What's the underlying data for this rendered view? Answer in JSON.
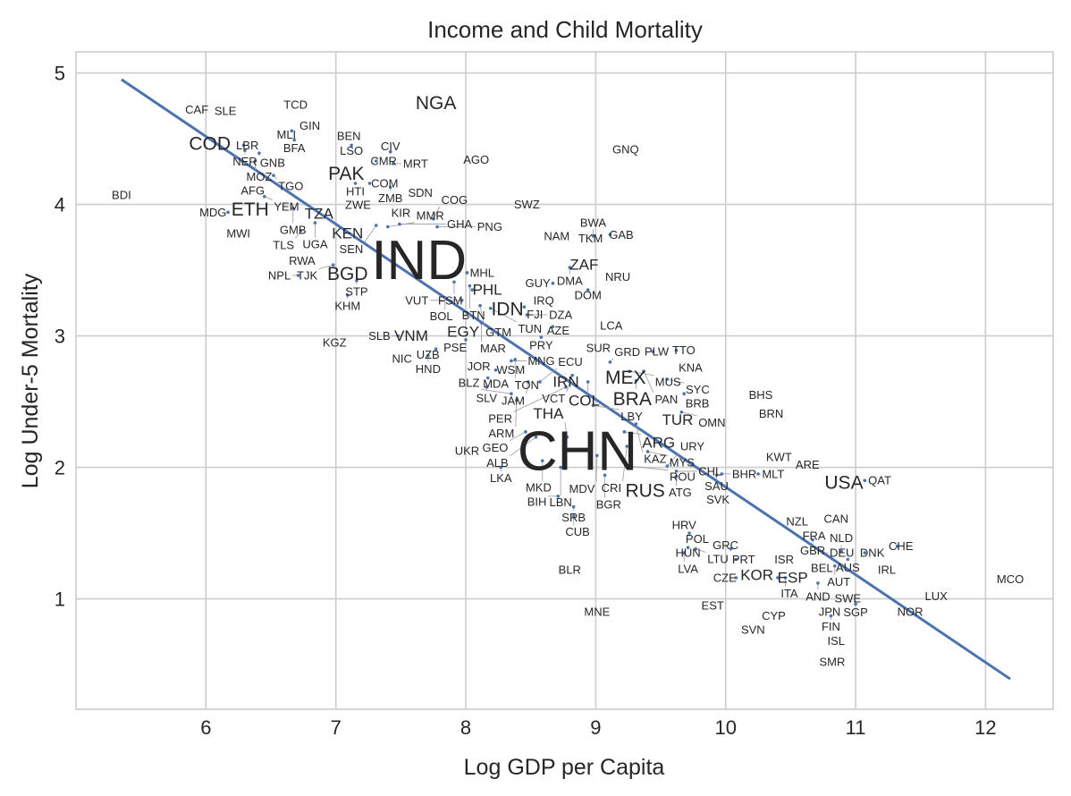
{
  "chart_data": {
    "type": "scatter",
    "title": "Income and Child Mortality",
    "xlabel": "Log GDP per Capita",
    "ylabel": "Log Under-5 Mortality",
    "xlim": [
      5.0,
      12.52
    ],
    "ylim": [
      0.16,
      5.16
    ],
    "xticks": [
      6,
      7,
      8,
      9,
      10,
      11,
      12
    ],
    "yticks": [
      1,
      2,
      3,
      4,
      5
    ],
    "grid": true,
    "marker": "country-code text labels (label size scales with population tier 1-4)",
    "fit_line": {
      "x": [
        5.35,
        12.19
      ],
      "y": [
        4.95,
        0.39
      ],
      "color": "#4c72b0"
    },
    "points": [
      [
        "CAF",
        5.93,
        4.72,
        1
      ],
      [
        "SLE",
        6.15,
        4.71,
        1
      ],
      [
        "TCD",
        6.69,
        4.76,
        1
      ],
      [
        "GIN",
        6.8,
        4.6,
        1
      ],
      [
        "MLI",
        6.66,
        4.56,
        1
      ],
      [
        "BFA",
        6.68,
        4.49,
        1
      ],
      [
        "BEN",
        7.1,
        4.52,
        1
      ],
      [
        "LSO",
        7.12,
        4.45,
        1
      ],
      [
        "NGA",
        7.77,
        4.77,
        3
      ],
      [
        "COD",
        6.03,
        4.46,
        3
      ],
      [
        "LBR",
        6.29,
        4.45,
        1
      ],
      [
        "NER",
        6.3,
        4.41,
        1
      ],
      [
        "GNB",
        6.41,
        4.39,
        1
      ],
      [
        "MOZ",
        6.38,
        4.33,
        1
      ],
      [
        "TGO",
        6.52,
        4.22,
        1
      ],
      [
        "AFG",
        6.34,
        4.12,
        1
      ],
      [
        "YEM",
        6.45,
        4.06,
        1
      ],
      [
        "BDI",
        5.35,
        4.07,
        1
      ],
      [
        "MDG",
        6.17,
        3.94,
        1
      ],
      [
        "ETH",
        6.34,
        3.96,
        3
      ],
      [
        "MWI",
        6.25,
        3.78,
        1
      ],
      [
        "GMB",
        6.67,
        3.97,
        1
      ],
      [
        "TZA",
        6.87,
        3.93,
        2
      ],
      [
        "UGA",
        6.84,
        3.86,
        1
      ],
      [
        "TLS",
        6.73,
        3.8,
        1
      ],
      [
        "KEN",
        7.09,
        3.78,
        2
      ],
      [
        "PAK",
        7.08,
        4.23,
        3
      ],
      [
        "HTI",
        7.15,
        4.16,
        1
      ],
      [
        "COM",
        7.26,
        4.16,
        1
      ],
      [
        "CMR",
        7.31,
        4.33,
        1
      ],
      [
        "CIV",
        7.42,
        4.4,
        1
      ],
      [
        "MRT",
        7.44,
        4.31,
        1
      ],
      [
        "ZMB",
        7.42,
        4.13,
        1
      ],
      [
        "SDN",
        7.65,
        4.09,
        1
      ],
      [
        "AGO",
        8.08,
        4.34,
        1
      ],
      [
        "GNQ",
        9.23,
        4.42,
        1
      ],
      [
        "ZWE",
        7.15,
        4.01,
        1
      ],
      [
        "KIR",
        7.48,
        3.95,
        1
      ],
      [
        "SEN",
        7.31,
        3.84,
        1
      ],
      [
        "MMR",
        7.4,
        3.83,
        1
      ],
      [
        "GHA",
        7.49,
        3.85,
        1
      ],
      [
        "COG",
        7.75,
        3.89,
        1
      ],
      [
        "PNG",
        7.78,
        3.83,
        1
      ],
      [
        "SWZ",
        8.47,
        4.0,
        1
      ],
      [
        "IND",
        7.64,
        3.57,
        4
      ],
      [
        "RWA",
        6.74,
        3.57,
        1
      ],
      [
        "TJK",
        6.98,
        3.54,
        1
      ],
      [
        "NPL",
        6.71,
        3.46,
        1
      ],
      [
        "BGD",
        7.09,
        3.47,
        3
      ],
      [
        "STP",
        7.16,
        3.42,
        1
      ],
      [
        "KHM",
        7.09,
        3.31,
        1
      ],
      [
        "NAM",
        8.7,
        3.76,
        1
      ],
      [
        "TKM",
        8.96,
        3.74,
        1
      ],
      [
        "BWA",
        8.98,
        3.76,
        1
      ],
      [
        "GAB",
        9.11,
        3.77,
        1
      ],
      [
        "DMA",
        8.8,
        3.52,
        1
      ],
      [
        "ZAF",
        8.91,
        3.54,
        2
      ],
      [
        "NRU",
        9.17,
        3.45,
        1
      ],
      [
        "GUY",
        8.67,
        3.4,
        1
      ],
      [
        "DOM",
        8.94,
        3.35,
        1
      ],
      [
        "IRQ",
        8.6,
        3.27,
        1
      ],
      [
        "MHL",
        8.01,
        3.48,
        1
      ],
      [
        "FSM",
        7.91,
        3.41,
        1
      ],
      [
        "BTN",
        8.03,
        3.38,
        1
      ],
      [
        "PHL",
        8.05,
        3.35,
        2
      ],
      [
        "BOL",
        7.84,
        3.29,
        1
      ],
      [
        "VUT",
        7.97,
        3.27,
        1
      ],
      [
        "GTM",
        8.11,
        3.23,
        1
      ],
      [
        "TUN",
        8.19,
        3.21,
        1
      ],
      [
        "IDN",
        8.32,
        3.2,
        3
      ],
      [
        "FJI",
        8.45,
        3.22,
        1
      ],
      [
        "DZA",
        8.47,
        3.16,
        1
      ],
      [
        "MAR",
        8.12,
        3.1,
        1
      ],
      [
        "EGY",
        7.98,
        3.03,
        2
      ],
      [
        "PSE",
        8.0,
        2.97,
        1
      ],
      [
        "AZE",
        8.67,
        3.07,
        1
      ],
      [
        "PRY",
        8.58,
        2.99,
        1
      ],
      [
        "LCA",
        9.12,
        3.08,
        1
      ],
      [
        "SLB",
        7.48,
        3.0,
        1
      ],
      [
        "VNM",
        7.58,
        3.0,
        2
      ],
      [
        "KGZ",
        6.99,
        2.95,
        1
      ],
      [
        "UZB",
        7.77,
        2.9,
        1
      ],
      [
        "NIC",
        7.53,
        2.84,
        1
      ],
      [
        "HND",
        7.71,
        2.85,
        1
      ],
      [
        "SUR",
        9.02,
        2.91,
        1
      ],
      [
        "GRD",
        9.11,
        2.8,
        1
      ],
      [
        "PLW",
        9.44,
        2.88,
        1
      ],
      [
        "TTO",
        9.62,
        2.89,
        1
      ],
      [
        "KNA",
        9.73,
        2.76,
        1
      ],
      [
        "MUS",
        9.26,
        2.73,
        1
      ],
      [
        "MEX",
        9.23,
        2.68,
        3
      ],
      [
        "BRA",
        9.31,
        2.66,
        3
      ],
      [
        "PAN",
        9.37,
        2.73,
        1
      ],
      [
        "SYC",
        9.55,
        2.67,
        1
      ],
      [
        "BRB",
        9.68,
        2.56,
        1
      ],
      [
        "BHS",
        10.27,
        2.55,
        1
      ],
      [
        "BRN",
        10.35,
        2.41,
        1
      ],
      [
        "OMN",
        9.66,
        2.42,
        1
      ],
      [
        "TUR",
        9.63,
        2.36,
        2
      ],
      [
        "JOR",
        8.1,
        2.77,
        1
      ],
      [
        "WSM",
        8.23,
        2.74,
        1
      ],
      [
        "MNG",
        8.35,
        2.81,
        1
      ],
      [
        "TON",
        8.38,
        2.82,
        1
      ],
      [
        "MDA",
        8.17,
        2.68,
        1
      ],
      [
        "SLV",
        8.16,
        2.61,
        1
      ],
      [
        "JAM",
        8.48,
        2.65,
        1
      ],
      [
        "ECU",
        8.57,
        2.65,
        1
      ],
      [
        "VCT",
        8.82,
        2.7,
        1
      ],
      [
        "IRN",
        8.77,
        2.65,
        2
      ],
      [
        "PER",
        8.77,
        2.61,
        1
      ],
      [
        "COL",
        8.94,
        2.65,
        2
      ],
      [
        "BLZ",
        8.35,
        2.56,
        1
      ],
      [
        "ARM",
        8.39,
        2.51,
        1
      ],
      [
        "LBY",
        8.98,
        2.47,
        1
      ],
      [
        "KAZ",
        9.31,
        2.33,
        1
      ],
      [
        "ARG",
        9.22,
        2.27,
        2
      ],
      [
        "GEO",
        8.46,
        2.27,
        1
      ],
      [
        "ALB",
        8.54,
        2.23,
        1
      ],
      [
        "THA",
        8.78,
        2.23,
        2
      ],
      [
        "CHN",
        8.86,
        2.12,
        4
      ],
      [
        "UKR",
        8.03,
        2.14,
        1
      ],
      [
        "MYS",
        9.4,
        2.12,
        1
      ],
      [
        "CRI",
        9.24,
        2.16,
        1
      ],
      [
        "MDV",
        9.01,
        2.09,
        1
      ],
      [
        "MKD",
        8.59,
        2.05,
        1
      ],
      [
        "LBN",
        8.73,
        2.0,
        1
      ],
      [
        "LKA",
        8.27,
        2.0,
        1
      ],
      [
        "BGR",
        9.07,
        1.94,
        1
      ],
      [
        "ROU",
        9.25,
        2.01,
        1
      ],
      [
        "URY",
        9.55,
        2.01,
        1
      ],
      [
        "CHL",
        9.62,
        1.97,
        1
      ],
      [
        "ATG",
        9.62,
        1.93,
        1
      ],
      [
        "SAU",
        9.93,
        1.94,
        1
      ],
      [
        "BHR",
        9.97,
        1.95,
        1
      ],
      [
        "RUS",
        9.38,
        1.84,
        3
      ],
      [
        "SVK",
        9.92,
        1.77,
        1
      ],
      [
        "KWT",
        10.41,
        2.08,
        1
      ],
      [
        "ARE",
        10.63,
        2.02,
        1
      ],
      [
        "MLT",
        10.25,
        1.95,
        1
      ],
      [
        "USA",
        10.91,
        1.88,
        3
      ],
      [
        "QAT",
        11.07,
        1.9,
        1
      ],
      [
        "BIH",
        8.71,
        1.78,
        1
      ],
      [
        "SRB",
        8.83,
        1.7,
        1
      ],
      [
        "CUB",
        8.83,
        1.63,
        1
      ],
      [
        "HRV",
        9.68,
        1.56,
        1
      ],
      [
        "POL",
        9.72,
        1.5,
        1
      ],
      [
        "HUN",
        9.71,
        1.39,
        1
      ],
      [
        "LTU",
        9.77,
        1.38,
        1
      ],
      [
        "LVA",
        9.68,
        1.35,
        1
      ],
      [
        "GRC",
        10.04,
        1.38,
        1
      ],
      [
        "PRT",
        10.08,
        1.3,
        1
      ],
      [
        "ISR",
        10.45,
        1.3,
        1
      ],
      [
        "CZE",
        10.08,
        1.16,
        1
      ],
      [
        "KOR",
        10.24,
        1.18,
        2
      ],
      [
        "ESP",
        10.4,
        1.16,
        2
      ],
      [
        "ITA",
        10.46,
        1.16,
        1
      ],
      [
        "NZL",
        10.55,
        1.59,
        1
      ],
      [
        "CAN",
        10.85,
        1.61,
        1
      ],
      [
        "FRA",
        10.68,
        1.48,
        1
      ],
      [
        "GBR",
        10.67,
        1.45,
        1
      ],
      [
        "DEU",
        10.75,
        1.35,
        1
      ],
      [
        "NLD",
        10.89,
        1.36,
        1
      ],
      [
        "DNK",
        11.07,
        1.35,
        1
      ],
      [
        "AUS",
        10.94,
        1.3,
        1
      ],
      [
        "BEL",
        10.72,
        1.25,
        1
      ],
      [
        "AUT",
        10.84,
        1.25,
        1
      ],
      [
        "AND",
        10.71,
        1.12,
        1
      ],
      [
        "CHE",
        11.32,
        1.4,
        1
      ],
      [
        "IRL",
        11.24,
        1.22,
        1
      ],
      [
        "BLR",
        8.8,
        1.22,
        1
      ],
      [
        "MNE",
        9.01,
        0.9,
        1
      ],
      [
        "EST",
        9.9,
        0.95,
        1
      ],
      [
        "CYP",
        10.37,
        0.87,
        1
      ],
      [
        "SVN",
        10.19,
        0.78,
        1
      ],
      [
        "JPN",
        10.8,
        0.9,
        1
      ],
      [
        "FIN",
        10.81,
        0.87,
        1
      ],
      [
        "SWE",
        10.96,
        0.99,
        1
      ],
      [
        "SGP",
        11.0,
        0.96,
        1
      ],
      [
        "ISL",
        10.85,
        0.68,
        1
      ],
      [
        "SMR",
        10.82,
        0.52,
        1
      ],
      [
        "NOR",
        11.42,
        0.9,
        1
      ],
      [
        "LUX",
        11.62,
        1.02,
        1
      ],
      [
        "MCO",
        12.19,
        1.15,
        1
      ]
    ]
  }
}
